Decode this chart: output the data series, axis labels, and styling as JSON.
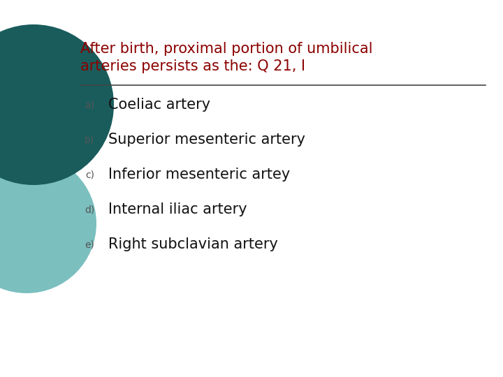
{
  "title_line1": "After birth, proximal portion of umbilical",
  "title_line2": "arteries persists as the: Q 21, I",
  "title_color": "#8B0000",
  "background_color": "#FFFFFF",
  "options": [
    {
      "label": "a)",
      "text": "Coeliac artery"
    },
    {
      "label": "b)",
      "text": "Superior mesenteric artery"
    },
    {
      "label": "c)",
      "text": "Inferior mesenteric artey"
    },
    {
      "label": "d)",
      "text": "Internal iliac artery"
    },
    {
      "label": "e)",
      "text": "Right subclavian artery"
    }
  ],
  "label_color": "#555555",
  "text_color": "#111111",
  "line_color": "#444444",
  "circle_dark_color": "#1a5c5c",
  "circle_light_color": "#7bbfbf",
  "title_fontsize": 15,
  "option_label_fontsize": 10,
  "option_text_fontsize": 15
}
